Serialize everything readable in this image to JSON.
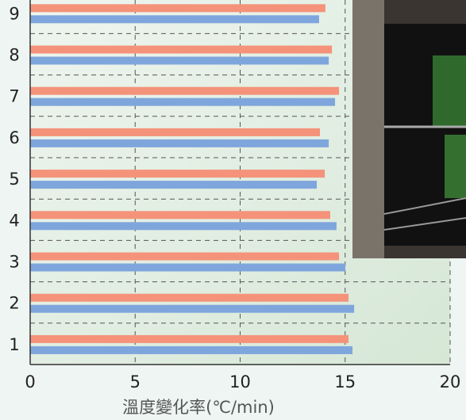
{
  "chart_data": {
    "type": "barh",
    "x_label": "溫度變化率(℃/min)",
    "categories": [
      "1",
      "2",
      "3",
      "4",
      "5",
      "6",
      "7",
      "8",
      "9"
    ],
    "series": [
      {
        "color": "#f4937a",
        "values": [
          15.16,
          15.16,
          14.71,
          14.29,
          14.03,
          13.8,
          14.71,
          14.37,
          14.06
        ]
      },
      {
        "color": "#7fa6dc",
        "values": [
          15.35,
          15.43,
          15.01,
          14.59,
          13.65,
          14.22,
          14.52,
          14.22,
          13.76
        ]
      }
    ],
    "xlim": [
      0,
      20
    ],
    "xticks": [
      0,
      5,
      10,
      15,
      20
    ],
    "grid": true
  }
}
